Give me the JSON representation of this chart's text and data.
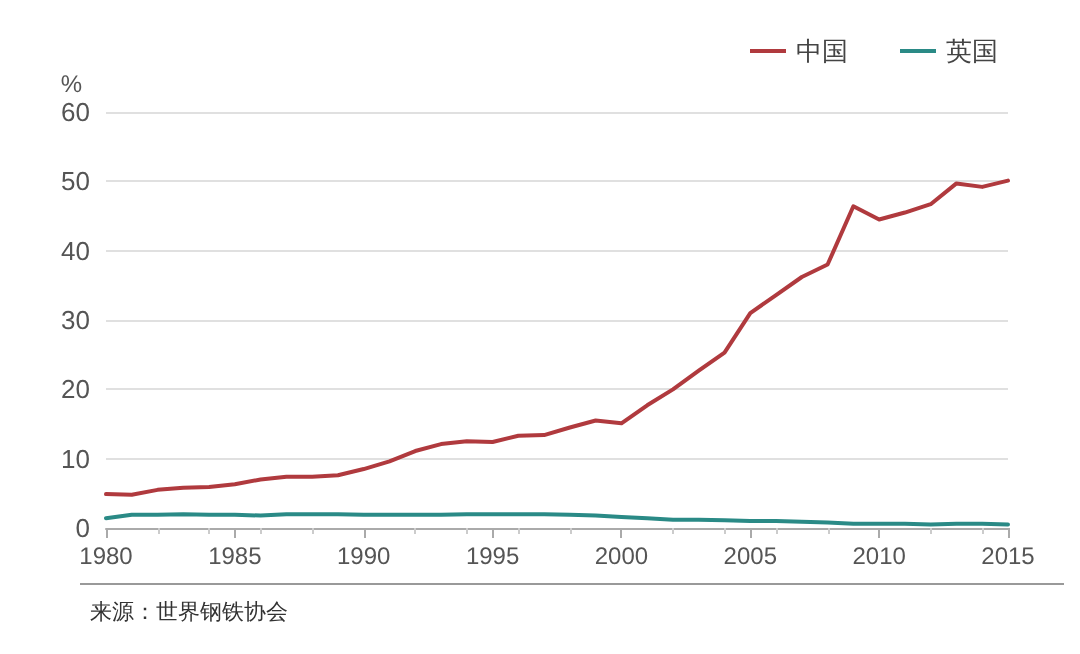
{
  "chart_data": {
    "type": "line",
    "ylabel": "%",
    "annotations": [
      "来源：世界钢铁协会"
    ],
    "x": [
      1980,
      1981,
      1982,
      1983,
      1984,
      1985,
      1986,
      1987,
      1988,
      1989,
      1990,
      1991,
      1992,
      1993,
      1994,
      1995,
      1996,
      1997,
      1998,
      1999,
      2000,
      2001,
      2002,
      2003,
      2004,
      2005,
      2006,
      2007,
      2008,
      2009,
      2010,
      2011,
      2012,
      2013,
      2014,
      2015
    ],
    "series": [
      {
        "name": "中国",
        "color": "#b03a3e",
        "values": [
          4.9,
          4.8,
          5.5,
          5.8,
          5.9,
          6.3,
          7.0,
          7.4,
          7.4,
          7.6,
          8.5,
          9.6,
          11.1,
          12.1,
          12.5,
          12.4,
          13.3,
          13.4,
          14.5,
          15.5,
          15.1,
          17.7,
          20.0,
          22.7,
          25.3,
          31.0,
          33.6,
          36.2,
          38.0,
          46.4,
          44.5,
          45.5,
          46.7,
          49.7,
          49.2,
          50.1
        ]
      },
      {
        "name": "英国",
        "color": "#2a8a86",
        "values": [
          1.4,
          1.9,
          1.9,
          2.0,
          1.9,
          1.9,
          1.8,
          2.0,
          2.0,
          2.0,
          1.9,
          1.9,
          1.9,
          1.9,
          2.0,
          2.0,
          2.0,
          2.0,
          1.9,
          1.8,
          1.6,
          1.4,
          1.2,
          1.2,
          1.1,
          1.0,
          1.0,
          0.9,
          0.8,
          0.6,
          0.6,
          0.6,
          0.5,
          0.6,
          0.6,
          0.5
        ]
      }
    ],
    "xlim": [
      1980,
      2015
    ],
    "xticks": [
      1980,
      1985,
      1990,
      1995,
      2000,
      2005,
      2010,
      2015
    ],
    "ylim": [
      0,
      60
    ],
    "yticks": [
      0,
      10,
      20,
      30,
      40,
      50,
      60
    ],
    "grid": "y",
    "legend": "top right",
    "marker": "none",
    "line_style": "solid"
  }
}
